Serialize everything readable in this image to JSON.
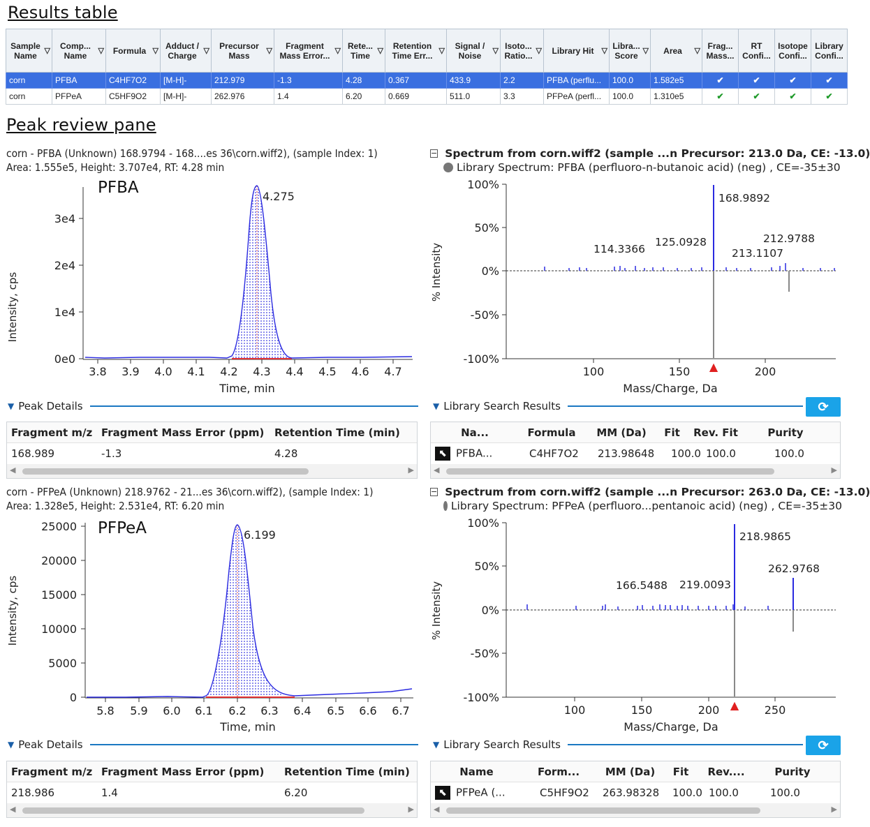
{
  "sections": {
    "results_title": "Results table",
    "peak_title": "Peak review pane"
  },
  "results": {
    "headers": [
      "Sample Name",
      "Comp... Name",
      "Formula",
      "Adduct / Charge",
      "Precursor Mass",
      "Fragment Mass Error...",
      "Rete... Time",
      "Retention Time Err...",
      "Signal / Noise",
      "Isoto... Ratio...",
      "Library Hit",
      "Libra... Score",
      "Area",
      "Frag... Mass...",
      "RT Confi...",
      "Isotope Confi...",
      "Library Confi..."
    ],
    "rows": [
      [
        "corn",
        "PFBA",
        "C4HF7O2",
        "[M-H]-",
        "212.979",
        "-1.3",
        "4.28",
        "0.367",
        "433.9",
        "2.2",
        "PFBA (perflu...",
        "100.0",
        "1.582e5",
        "✔",
        "✔",
        "✔",
        "✔"
      ],
      [
        "corn",
        "PFPeA",
        "C5HF9O2",
        "[M-H]-",
        "262.976",
        "1.4",
        "6.20",
        "0.669",
        "511.0",
        "3.3",
        "PFPeA (perfl...",
        "100.0",
        "1.310e5",
        "✔",
        "✔",
        "✔",
        "✔"
      ]
    ]
  },
  "panes": [
    {
      "info1": "corn - PFBA (Unknown) 168.9794 - 168....es 36\\corn.wiff2), (sample Index: 1)",
      "info2": "Area: 1.555e5, Height: 3.707e4, RT: 4.28 min",
      "compound_label": "PFBA",
      "chrom": {
        "ylabel": "Intensity, cps",
        "xlabel": "Time, min",
        "apex_label": "4.275",
        "xticks": [
          "3.8",
          "3.9",
          "4.0",
          "4.1",
          "4.2",
          "4.3",
          "4.4",
          "4.5",
          "4.6",
          "4.7"
        ],
        "yticks": [
          "0e0",
          "1e4",
          "2e4",
          "3e4"
        ]
      },
      "spec": {
        "title": "Spectrum from corn.wiff2 (sample ...n Precursor: 213.0 Da, CE: -13.0)",
        "lib": "Library Spectrum: PFBA (perfluoro-n-butanoic acid) (neg) , CE=-35±30",
        "ylabel": "% Intensity",
        "xlabel": "Mass/Charge, Da",
        "yticks": [
          "100%",
          "50%",
          "0%",
          "-50%",
          "-100%"
        ],
        "xticks": [
          "100",
          "150",
          "200"
        ],
        "peak_labels": [
          "168.9892",
          "114.3366",
          "125.0928",
          "212.9788",
          "213.1107"
        ]
      },
      "details": {
        "title": "Peak Details",
        "headers": [
          "Fragment m/z",
          "Fragment Mass Error (ppm)",
          "Retention Time (min)"
        ],
        "values": [
          "168.989",
          "-1.3",
          "4.28"
        ]
      },
      "library": {
        "title": "Library Search Results",
        "headers": [
          "Na...",
          "Formula",
          "MM (Da)",
          "Fit",
          "Rev. Fit",
          "Purity"
        ],
        "values": [
          "PFBA...",
          "C4HF7O2",
          "213.98648",
          "100.0",
          "100.0",
          "100.0"
        ]
      }
    },
    {
      "info1": "corn - PFPeA (Unknown) 218.9762 - 21...es 36\\corn.wiff2), (sample Index: 1)",
      "info2": "Area: 1.328e5, Height: 2.531e4, RT: 6.20 min",
      "compound_label": "PFPeA",
      "chrom": {
        "ylabel": "Intensity, cps",
        "xlabel": "Time, min",
        "apex_label": "6.199",
        "xticks": [
          "5.8",
          "5.9",
          "6.0",
          "6.1",
          "6.2",
          "6.3",
          "6.4",
          "6.5",
          "6.6",
          "6.7"
        ],
        "yticks": [
          "0",
          "5000",
          "10000",
          "15000",
          "20000",
          "25000"
        ]
      },
      "spec": {
        "title": "Spectrum from corn.wiff2 (sample ...n Precursor: 263.0 Da, CE: -13.0)",
        "lib": "Library Spectrum: PFPeA (perfluoro...pentanoic acid) (neg) , CE=-35±30",
        "ylabel": "% Intensity",
        "xlabel": "Mass/Charge, Da",
        "yticks": [
          "100%",
          "50%",
          "0%",
          "-50%",
          "-100%"
        ],
        "xticks": [
          "100",
          "150",
          "200",
          "250"
        ],
        "peak_labels": [
          "218.9865",
          "262.9768",
          "166.5488",
          "219.0093"
        ]
      },
      "details": {
        "title": "Peak Details",
        "headers": [
          "Fragment m/z",
          "Fragment Mass Error (ppm)",
          "Retention Time (min)"
        ],
        "values": [
          "218.986",
          "1.4",
          "6.20"
        ]
      },
      "library": {
        "title": "Library Search Results",
        "headers": [
          "Name",
          "Form...",
          "MM (Da)",
          "Fit",
          "Rev....",
          "Purity"
        ],
        "values": [
          "PFPeA (...",
          "C5HF9O2",
          "263.98328",
          "100.0",
          "100.0",
          "100.0"
        ]
      }
    }
  ],
  "colors": {
    "selected_row": "#3a6fe0",
    "trace": "#2a2ae0",
    "check": "#1f9a2a",
    "accent": "#1a78c2"
  }
}
